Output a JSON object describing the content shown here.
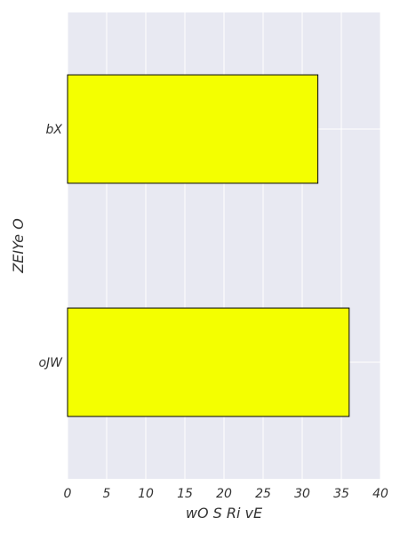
{
  "chart_data": {
    "type": "bar",
    "orientation": "horizontal",
    "categories": [
      "bX",
      "oJW"
    ],
    "values": [
      32,
      36
    ],
    "xlabel": "wO S Ri vE",
    "ylabel": "ZEIYe O",
    "xlim": [
      0,
      40
    ],
    "xticks": [
      0,
      5,
      10,
      15,
      20,
      25,
      30,
      35,
      40
    ],
    "grid": true,
    "bar_color": "#f4ff00",
    "bar_edge_color": "#000000",
    "plot_background": "#e8e9f2",
    "grid_color": "#ffffff"
  }
}
